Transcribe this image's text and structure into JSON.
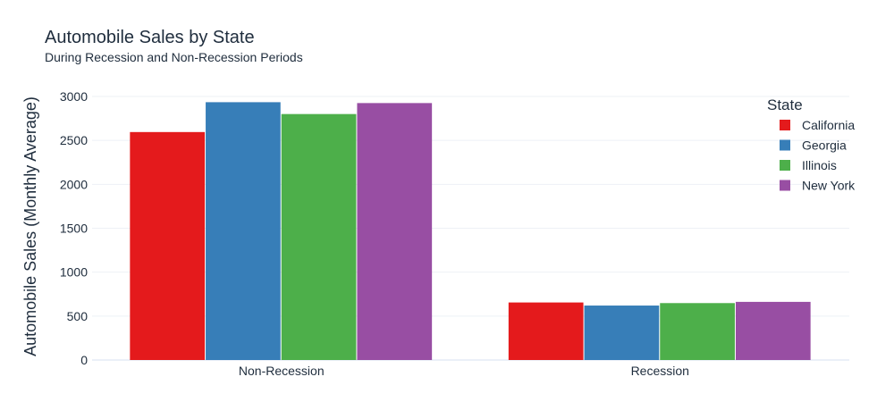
{
  "chart_data": {
    "type": "bar",
    "title": "Automobile Sales by State",
    "subtitle": "During Recession and Non-Recession Periods",
    "xlabel": "",
    "ylabel": "Automobile Sales (Monthly Average)",
    "categories": [
      "Non-Recession",
      "Recession"
    ],
    "series": [
      {
        "name": "California",
        "color": "#e41a1c",
        "values": [
          2595,
          655
        ]
      },
      {
        "name": "Georgia",
        "color": "#377eb8",
        "values": [
          2935,
          620
        ]
      },
      {
        "name": "Illinois",
        "color": "#4daf4a",
        "values": [
          2800,
          648
        ]
      },
      {
        "name": "New York",
        "color": "#984ea3",
        "values": [
          2925,
          662
        ]
      }
    ],
    "ylim": [
      0,
      3000
    ],
    "yticks": [
      0,
      500,
      1000,
      1500,
      2000,
      2500,
      3000
    ],
    "grid": true,
    "legend": {
      "title": "State",
      "position": "top-right"
    }
  }
}
